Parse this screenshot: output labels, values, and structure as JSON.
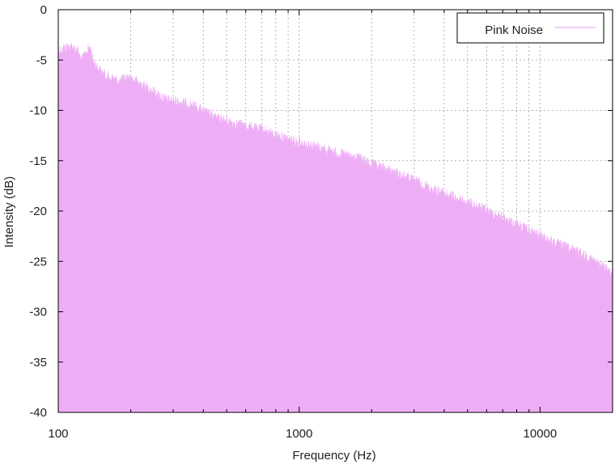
{
  "chart_data": {
    "type": "area",
    "title": "",
    "xlabel": "Frequency (Hz)",
    "ylabel": "Intensity (dB)",
    "x_scale": "log",
    "xlim": [
      100,
      20000
    ],
    "ylim": [
      -40,
      0
    ],
    "grid": true,
    "legend_position": "top-right",
    "x_ticks": [
      {
        "value": 100,
        "label": "100"
      },
      {
        "value": 1000,
        "label": "1000"
      },
      {
        "value": 10000,
        "label": "10000"
      }
    ],
    "y_ticks": [
      {
        "value": 0,
        "label": "0"
      },
      {
        "value": -5,
        "label": "-5"
      },
      {
        "value": -10,
        "label": "-10"
      },
      {
        "value": -15,
        "label": "-15"
      },
      {
        "value": -20,
        "label": "-20"
      },
      {
        "value": -25,
        "label": "-25"
      },
      {
        "value": -30,
        "label": "-30"
      },
      {
        "value": -35,
        "label": "-35"
      },
      {
        "value": -40,
        "label": "-40"
      }
    ],
    "series": [
      {
        "name": "Pink Noise",
        "color": "#eeaef6",
        "x": [
          100,
          105,
          110,
          115,
          120,
          125,
          130,
          135,
          140,
          150,
          160,
          170,
          180,
          190,
          200,
          220,
          250,
          280,
          300,
          350,
          400,
          450,
          500,
          600,
          700,
          800,
          900,
          1000,
          1200,
          1500,
          1800,
          2000,
          2500,
          3000,
          3500,
          4000,
          5000,
          6000,
          7000,
          8000,
          10000,
          12000,
          15000,
          18000,
          20000
        ],
        "y": [
          -3.6,
          -3.3,
          -3.1,
          -3.2,
          -3.5,
          -4.5,
          -3.8,
          -3.1,
          -4.6,
          -5.6,
          -6.1,
          -6.3,
          -6.6,
          -6.2,
          -6.3,
          -6.8,
          -7.6,
          -8.4,
          -8.5,
          -8.8,
          -9.5,
          -10.2,
          -10.5,
          -11.0,
          -11.4,
          -11.9,
          -12.3,
          -12.6,
          -13.1,
          -13.8,
          -14.3,
          -14.8,
          -15.6,
          -16.4,
          -17.2,
          -17.7,
          -18.6,
          -19.4,
          -20.1,
          -20.8,
          -21.9,
          -22.8,
          -23.7,
          -24.9,
          -25.7
        ]
      }
    ]
  }
}
